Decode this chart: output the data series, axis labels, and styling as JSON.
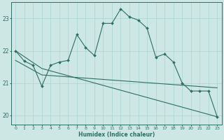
{
  "xlabel": "Humidex (Indice chaleur)",
  "background_color": "#cde8e4",
  "line_color": "#2d6e65",
  "grid_color": "#a8d4ce",
  "xlim_min": -0.5,
  "xlim_max": 23.5,
  "ylim_min": 19.7,
  "ylim_max": 23.5,
  "yticks": [
    20,
    21,
    22,
    23
  ],
  "xticks": [
    0,
    1,
    2,
    3,
    4,
    5,
    6,
    7,
    8,
    9,
    10,
    11,
    12,
    13,
    14,
    15,
    16,
    17,
    18,
    19,
    20,
    21,
    22,
    23
  ],
  "line1_x": [
    0,
    1,
    2,
    3,
    4,
    5,
    6,
    7,
    8,
    9,
    10,
    11,
    12,
    13,
    14,
    15,
    16,
    17,
    18,
    19,
    20,
    21,
    22,
    23
  ],
  "line1_y": [
    22.0,
    21.68,
    21.55,
    20.9,
    21.55,
    21.65,
    21.7,
    22.5,
    22.1,
    21.85,
    22.85,
    22.85,
    23.3,
    23.05,
    22.95,
    22.7,
    21.8,
    21.9,
    21.65,
    21.0,
    20.75,
    20.75,
    20.75,
    19.95
  ],
  "line2_x": [
    0,
    3,
    23
  ],
  "line2_y": [
    21.7,
    21.25,
    20.85
  ],
  "line3_x": [
    0,
    3,
    23
  ],
  "line3_y": [
    22.0,
    21.45,
    19.95
  ],
  "font_color": "#2d6e65"
}
